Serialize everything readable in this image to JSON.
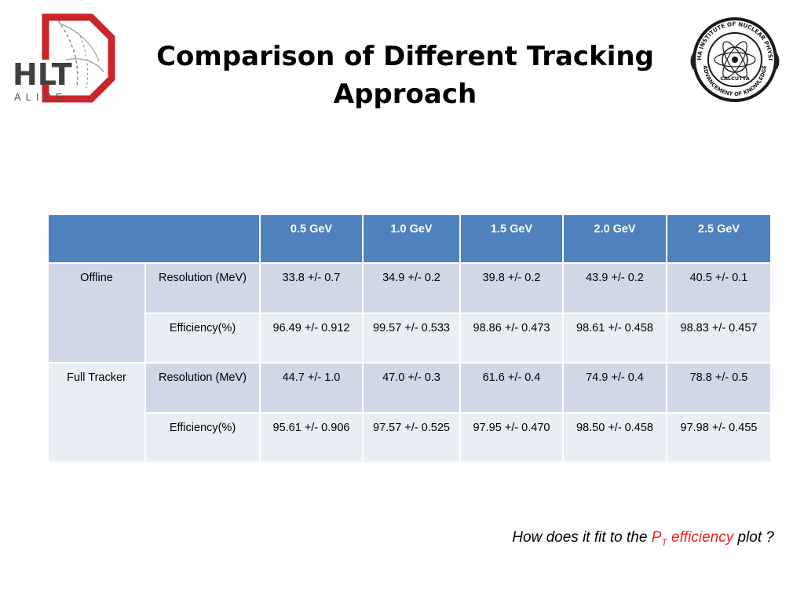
{
  "logos": {
    "left": {
      "text": "HLT",
      "subtext": "ALICE",
      "icon": "hlt-alice-logo"
    },
    "right": {
      "top_text": "SAHA INSTITUTE OF NUCLEAR PHYSICS",
      "center_text": "CALCUTTA",
      "bottom_text": "ADVANCEMENT OF KNOWLEDGE",
      "icon": "saha-institute-seal"
    }
  },
  "title": {
    "line1": "Comparison of Different Tracking",
    "line2": "Approach"
  },
  "table": {
    "columns": [
      "0.5 GeV",
      "1.0 GeV",
      "1.5 GeV",
      "2.0 GeV",
      "2.5 GeV"
    ],
    "groups": [
      {
        "name": "Offline",
        "rows": [
          {
            "metric": "Resolution (MeV)",
            "values": [
              "33.8 +/- 0.7",
              "34.9 +/- 0.2",
              "39.8 +/- 0.2",
              "43.9 +/- 0.2",
              "40.5 +/- 0.1"
            ]
          },
          {
            "metric": "Efficiency(%)",
            "values": [
              "96.49 +/- 0.912",
              "99.57 +/- 0.533",
              "98.86 +/- 0.473",
              "98.61 +/- 0.458",
              "98.83 +/- 0.457"
            ]
          }
        ]
      },
      {
        "name": "Full Tracker",
        "rows": [
          {
            "metric": "Resolution (MeV)",
            "values": [
              "44.7 +/- 1.0",
              "47.0 +/- 0.3",
              "61.6 +/- 0.4",
              "74.9 +/- 0.4",
              "78.8 +/- 0.5"
            ]
          },
          {
            "metric": "Efficiency(%)",
            "values": [
              "95.61 +/- 0.906",
              "97.57 +/- 0.525",
              "97.95 +/- 0.470",
              "98.50 +/- 0.458",
              "97.98 +/- 0.455"
            ]
          }
        ]
      }
    ]
  },
  "footer": {
    "prefix": "How does it fit to the ",
    "highlight_main": "P",
    "highlight_sub": "T",
    "highlight_rest": " efficiency",
    "suffix": " plot ?"
  },
  "colors": {
    "header": "#4f81bd",
    "row_dark": "#d0d8e8",
    "row_light": "#e9edf4",
    "accent_red": "#e8231e",
    "logo_red": "#c8262b"
  }
}
